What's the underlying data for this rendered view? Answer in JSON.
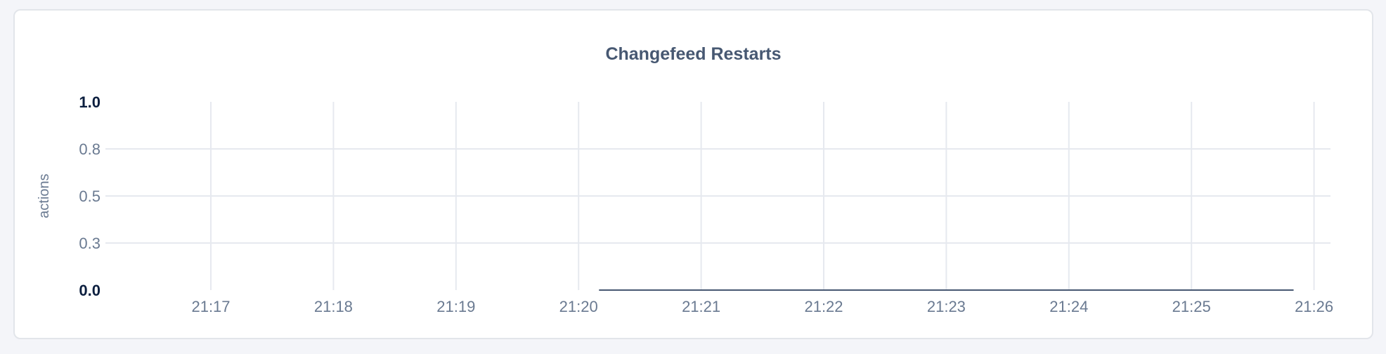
{
  "chart_data": {
    "type": "line",
    "title": "Changefeed Restarts",
    "ylabel": "actions",
    "xlabel": "",
    "ylim": [
      0,
      1
    ],
    "xlim": [
      "21:16:00",
      "21:26:10"
    ],
    "y_ticks": [
      {
        "value": 0,
        "label": "0.0",
        "emphasis": true
      },
      {
        "value": 0.25,
        "label": "0.3",
        "emphasis": false
      },
      {
        "value": 0.5,
        "label": "0.5",
        "emphasis": false
      },
      {
        "value": 0.75,
        "label": "0.8",
        "emphasis": false
      },
      {
        "value": 1,
        "label": "1.0",
        "emphasis": true
      }
    ],
    "x_ticks": [
      "21:17",
      "21:18",
      "21:19",
      "21:20",
      "21:21",
      "21:22",
      "21:23",
      "21:24",
      "21:25",
      "21:26"
    ],
    "grid": true,
    "legend": "none",
    "series": [
      {
        "color": "#475872",
        "x": [
          "21:20:10",
          "21:20:20",
          "21:20:30",
          "21:20:40",
          "21:20:50",
          "21:21:00",
          "21:21:10",
          "21:21:20",
          "21:21:30",
          "21:21:40",
          "21:21:50",
          "21:22:00",
          "21:22:10",
          "21:22:20",
          "21:22:30",
          "21:22:40",
          "21:22:50",
          "21:23:00",
          "21:23:10",
          "21:23:20",
          "21:23:30",
          "21:23:40",
          "21:23:50",
          "21:24:00",
          "21:24:10",
          "21:24:20",
          "21:24:30",
          "21:24:40",
          "21:24:50",
          "21:25:00",
          "21:25:10",
          "21:25:20",
          "21:25:30",
          "21:25:40",
          "21:25:50"
        ],
        "y": [
          0,
          0,
          0,
          0,
          0,
          0,
          0,
          0,
          0,
          0,
          0,
          0,
          0,
          0,
          0,
          0,
          0,
          0,
          0,
          0,
          0,
          0,
          0,
          0,
          0,
          0,
          0,
          0,
          0,
          0,
          0,
          0,
          0,
          0,
          0
        ]
      }
    ]
  }
}
